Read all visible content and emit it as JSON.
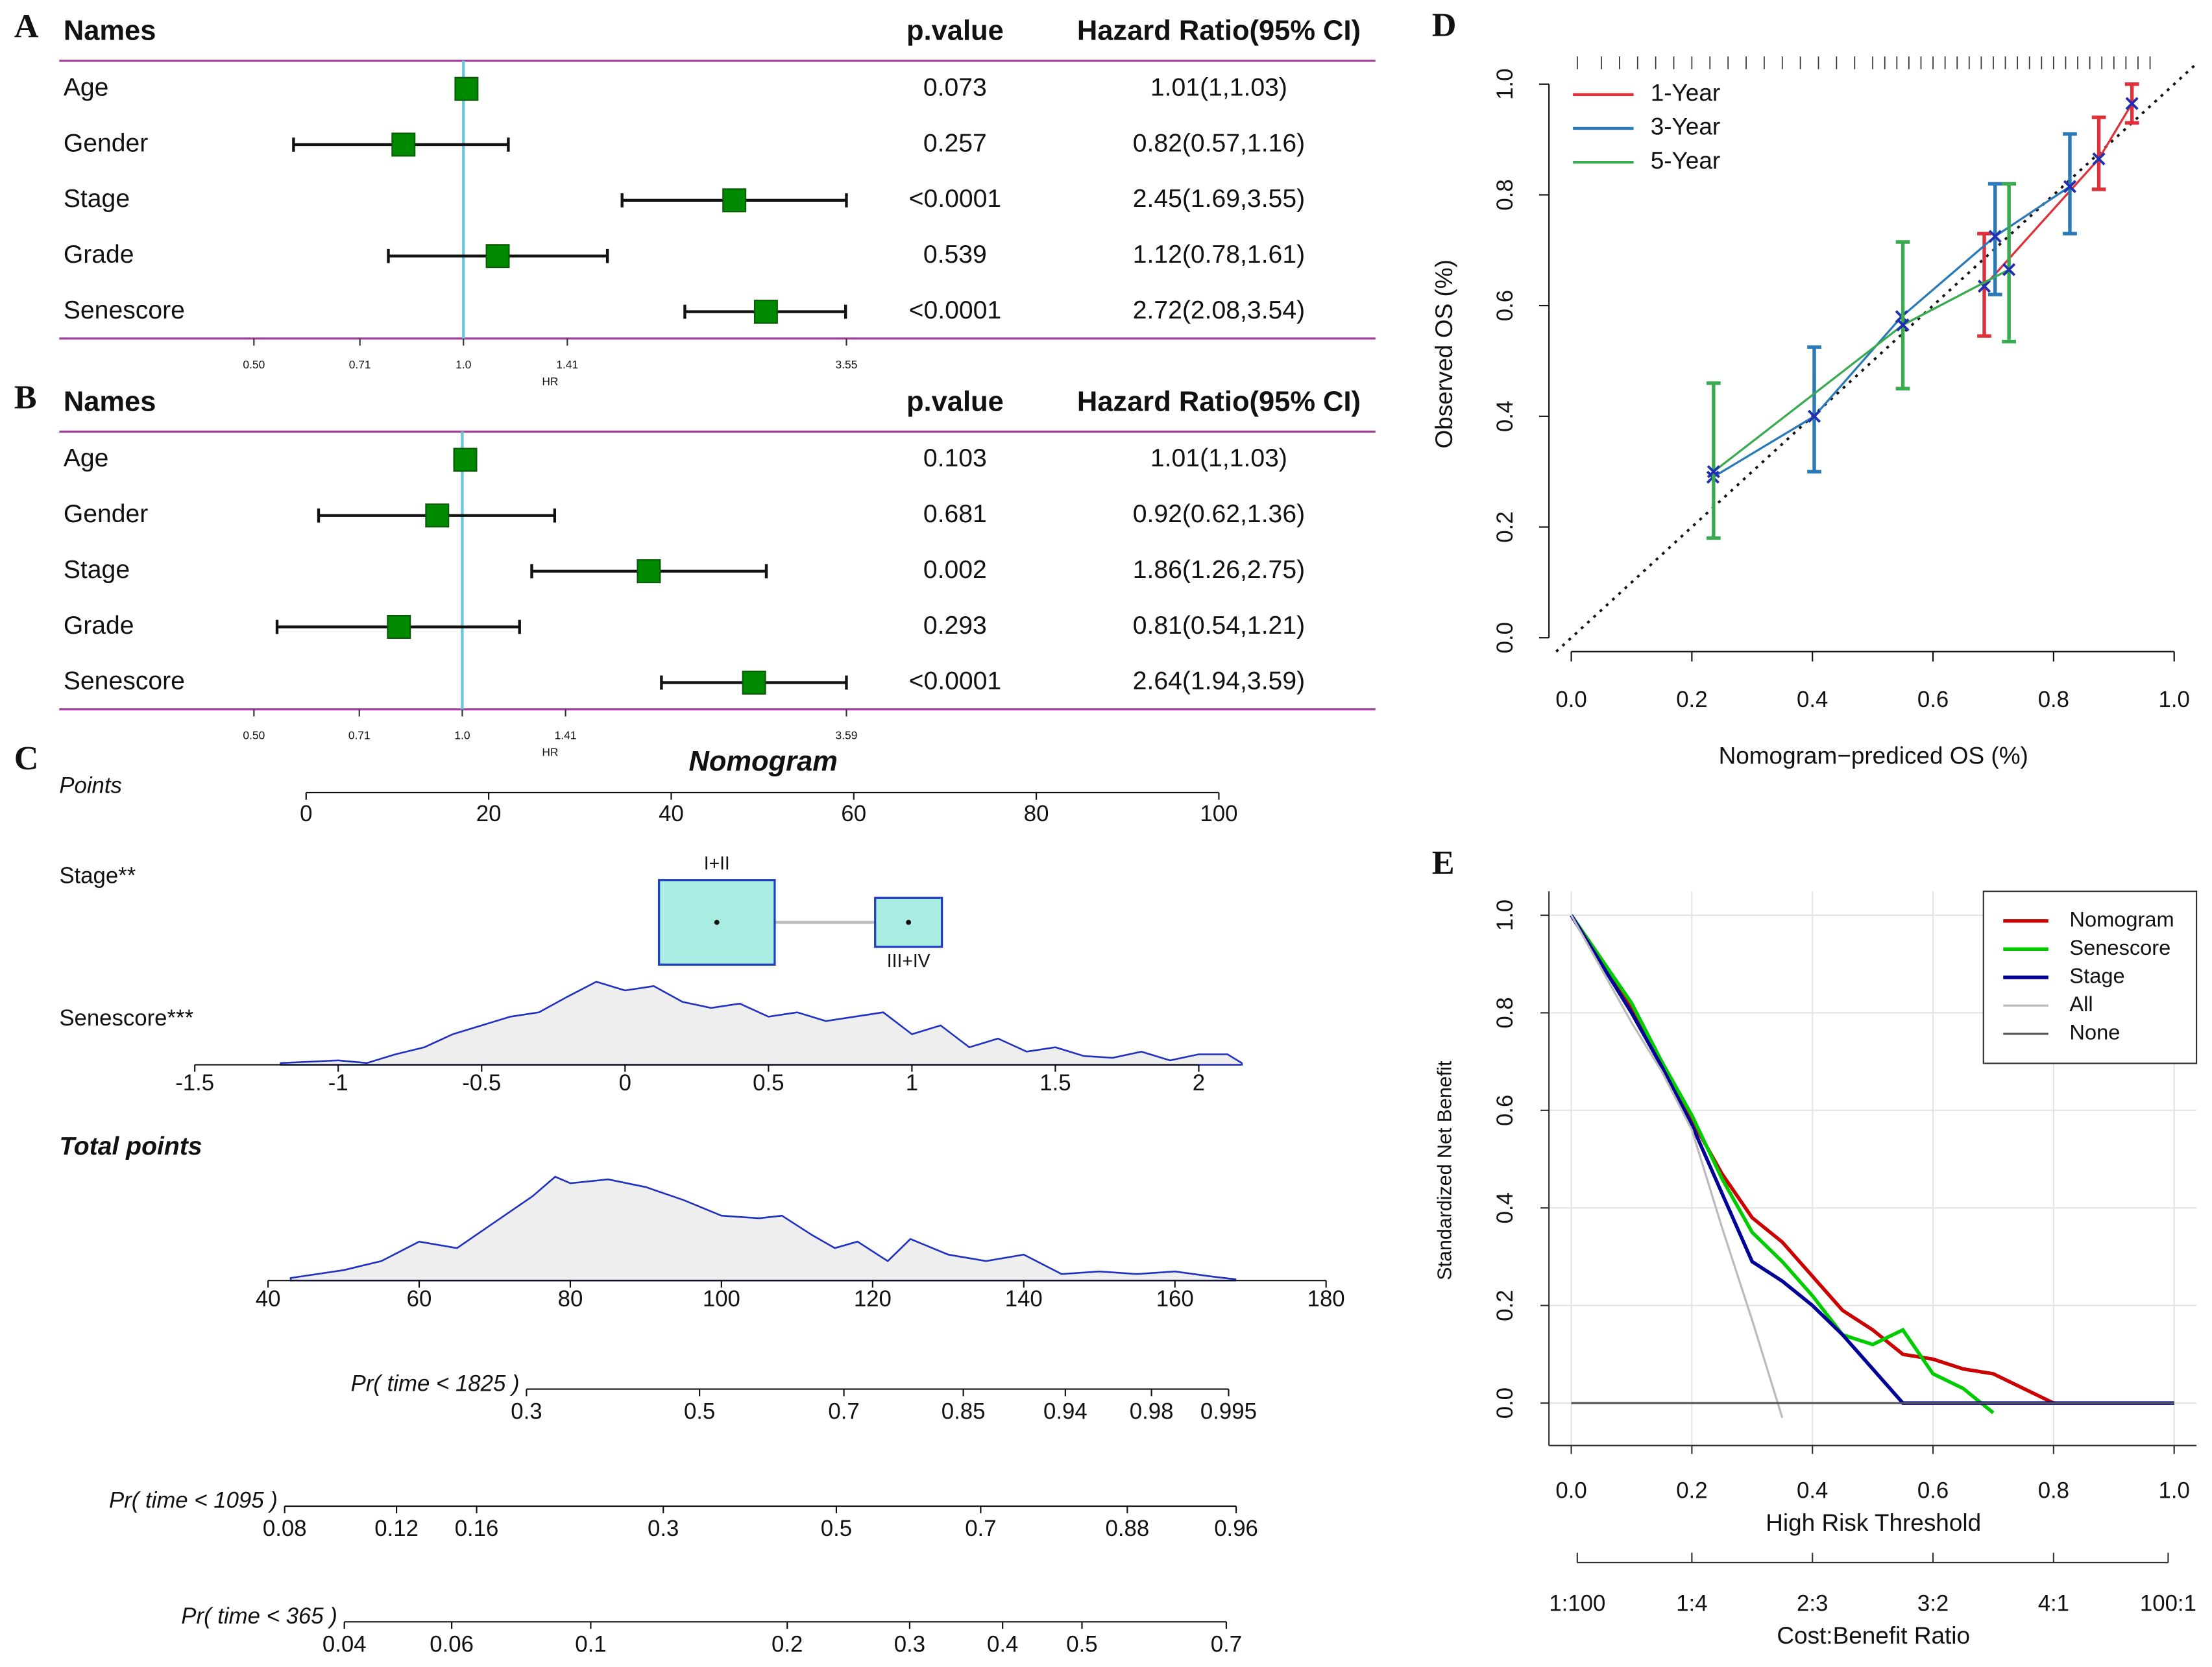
{
  "chart_data": [
    {
      "type": "forest",
      "panel": "A",
      "headers": [
        "Names",
        "p.value",
        "Hazard Ratio(95% CI)"
      ],
      "categories": [
        "Age",
        "Gender",
        "Stage",
        "Grade",
        "Senescore"
      ],
      "values": [
        1.01,
        0.82,
        2.45,
        1.12,
        2.72
      ],
      "lower": [
        1,
        0.57,
        1.69,
        0.78,
        2.08
      ],
      "upper": [
        1.03,
        1.16,
        3.55,
        1.61,
        3.54
      ],
      "p_values": [
        "0.073",
        "0.257",
        "<0.0001",
        "0.539",
        "<0.0001"
      ],
      "value_labels": [
        "1.01(1,1.03)",
        "0.82(0.57,1.16)",
        "2.45(1.69,3.55)",
        "1.12(0.78,1.61)",
        "2.72(2.08,3.54)"
      ],
      "xlabel": "HR",
      "log_x": true,
      "xlim": [
        0.5,
        3.55
      ],
      "xticks": [
        {
          "value": 0.5,
          "label": "0.50"
        },
        0.71,
        {
          "value": 1,
          "label": "1.0"
        },
        1.41,
        3.55
      ],
      "reference": 1,
      "color": "#008a00"
    },
    {
      "type": "forest",
      "panel": "B",
      "headers": [
        "Names",
        "p.value",
        "Hazard Ratio(95% CI)"
      ],
      "categories": [
        "Age",
        "Gender",
        "Stage",
        "Grade",
        "Senescore"
      ],
      "values": [
        1.01,
        0.92,
        1.86,
        0.81,
        2.64
      ],
      "lower": [
        1,
        0.62,
        1.26,
        0.54,
        1.94
      ],
      "upper": [
        1.03,
        1.36,
        2.75,
        1.21,
        3.59
      ],
      "p_values": [
        "0.103",
        "0.681",
        "0.002",
        "0.293",
        "<0.0001"
      ],
      "value_labels": [
        "1.01(1,1.03)",
        "0.92(0.62,1.36)",
        "1.86(1.26,2.75)",
        "0.81(0.54,1.21)",
        "2.64(1.94,3.59)"
      ],
      "xlabel": "HR",
      "log_x": true,
      "xlim": [
        0.5,
        3.59
      ],
      "xticks": [
        {
          "value": 0.5,
          "label": "0.50"
        },
        0.71,
        {
          "value": 1,
          "label": "1.0"
        },
        1.41,
        3.59
      ],
      "reference": 1,
      "color": "#008a00"
    },
    {
      "type": "nomogram",
      "panel": "C",
      "title": "Nomogram",
      "points": {
        "label": "Points",
        "xlim": [
          0,
          100
        ],
        "xticks": [
          0,
          20,
          40,
          60,
          80,
          100
        ]
      },
      "stage": {
        "label": "Stage**",
        "categories": [
          "I+II",
          "III+IV"
        ],
        "values": [
          45,
          66
        ],
        "weights": [
          75,
          25
        ]
      },
      "senescore": {
        "label": "Senescore***",
        "xlim": [
          -1.5,
          2
        ],
        "points_at_xlim": [
          -12.2,
          97.8
        ],
        "xticks": [
          -1.5,
          -1,
          -0.5,
          0,
          0.5,
          1,
          1.5,
          2
        ],
        "density": {
          "x": [
            -1.2,
            -1,
            -0.9,
            -0.8,
            -0.7,
            -0.6,
            -0.5,
            -0.4,
            -0.3,
            -0.2,
            -0.1,
            0,
            0.1,
            0.2,
            0.3,
            0.4,
            0.5,
            0.6,
            0.7,
            0.8,
            0.9,
            1,
            1.1,
            1.2,
            1.3,
            1.4,
            1.5,
            1.6,
            1.7,
            1.8,
            1.9,
            2,
            2.1,
            2.15
          ],
          "values": [
            0.02,
            0.05,
            0.02,
            0.12,
            0.2,
            0.35,
            0.45,
            0.55,
            0.6,
            0.78,
            0.95,
            0.85,
            0.9,
            0.72,
            0.65,
            0.7,
            0.55,
            0.6,
            0.5,
            0.55,
            0.6,
            0.35,
            0.45,
            0.2,
            0.3,
            0.15,
            0.2,
            0.1,
            0.08,
            0.15,
            0.05,
            0.12,
            0.12,
            0.02
          ]
        }
      },
      "total_points": {
        "label": "Total points",
        "xlim": [
          40,
          180
        ],
        "xticks": [
          40,
          60,
          80,
          100,
          120,
          140,
          160,
          180
        ],
        "density": {
          "x": [
            43,
            50,
            55,
            60,
            65,
            70,
            75,
            78,
            80,
            85,
            90,
            95,
            100,
            105,
            108,
            112,
            115,
            118,
            122,
            125,
            130,
            135,
            140,
            145,
            150,
            155,
            160,
            165,
            168
          ],
          "values": [
            0.02,
            0.08,
            0.15,
            0.3,
            0.25,
            0.45,
            0.65,
            0.8,
            0.75,
            0.78,
            0.72,
            0.62,
            0.5,
            0.48,
            0.5,
            0.35,
            0.25,
            0.3,
            0.15,
            0.32,
            0.2,
            0.15,
            0.2,
            0.05,
            0.07,
            0.05,
            0.07,
            0.03,
            0.01
          ]
        }
      },
      "probabilities": [
        {
          "label": "Pr( time < 1825 )",
          "xticks": [
            0.3,
            0.5,
            0.7,
            0.85,
            0.94,
            0.98,
            0.995
          ],
          "total_points_at": [
            74.2,
            97.1,
            116.2,
            132.0,
            145.5,
            156.9,
            167.1
          ]
        },
        {
          "label": "Pr( time < 1095 )",
          "xticks": [
            0.08,
            0.12,
            0.16,
            0.3,
            0.5,
            0.7,
            0.88,
            0.96
          ],
          "total_points_at": [
            42.2,
            57.0,
            67.6,
            92.3,
            115.2,
            134.3,
            153.7,
            168.1
          ]
        },
        {
          "label": "Pr( time < 365 )",
          "xticks": [
            0.04,
            0.06,
            0.1,
            0.2,
            0.3,
            0.4,
            0.5,
            0.7
          ],
          "total_points_at": [
            50.1,
            64.3,
            82.7,
            108.7,
            124.9,
            137.2,
            147.7,
            166.8
          ]
        }
      ]
    },
    {
      "type": "calibration",
      "panel": "D",
      "xlabel": "Nomogram−prediced OS (%)",
      "ylabel": "Observed OS (%)",
      "xlim": [
        -0.037,
        1.037
      ],
      "ylim": [
        -0.025,
        1.05
      ],
      "xticks": [
        {
          "value": 0,
          "label": "0.0"
        },
        0.2,
        0.4,
        0.6,
        0.8,
        {
          "value": 1,
          "label": "1.0"
        }
      ],
      "yticks": [
        {
          "value": 0,
          "label": "0.0"
        },
        0.2,
        0.4,
        0.6,
        0.8,
        {
          "value": 1,
          "label": "1.0"
        }
      ],
      "diagonal": true,
      "legend": "top-left",
      "rug": [
        0.01,
        0.05,
        0.08,
        0.11,
        0.14,
        0.17,
        0.2,
        0.23,
        0.26,
        0.29,
        0.32,
        0.35,
        0.38,
        0.41,
        0.44,
        0.47,
        0.5,
        0.52,
        0.54,
        0.56,
        0.58,
        0.6,
        0.62,
        0.64,
        0.66,
        0.68,
        0.7,
        0.72,
        0.74,
        0.76,
        0.78,
        0.8,
        0.82,
        0.84,
        0.86,
        0.88,
        0.9,
        0.92,
        0.94,
        0.96
      ],
      "series": [
        {
          "name": "1-Year",
          "color": "#e0303a",
          "x": [
            0.685,
            0.875,
            0.93
          ],
          "values": [
            0.635,
            0.865,
            0.965
          ],
          "lower": [
            0.545,
            0.81,
            0.93
          ],
          "upper": [
            0.73,
            0.94,
            1.0
          ]
        },
        {
          "name": "3-Year",
          "color": "#2a7ab8",
          "x": [
            0.235,
            0.403,
            0.548,
            0.703,
            0.827
          ],
          "values": [
            0.29,
            0.4,
            0.58,
            0.725,
            0.815
          ],
          "lower": [
            null,
            0.3,
            null,
            0.62,
            0.73
          ],
          "upper": [
            null,
            0.525,
            null,
            0.82,
            0.91
          ]
        },
        {
          "name": "5-Year",
          "color": "#3aaa50",
          "x": [
            0.236,
            0.55,
            0.726
          ],
          "values": [
            0.3,
            0.565,
            0.665
          ],
          "lower": [
            0.18,
            0.45,
            0.535
          ],
          "upper": [
            0.46,
            0.715,
            0.82
          ]
        }
      ]
    },
    {
      "type": "dca",
      "panel": "E",
      "xlabel": "High Risk Threshold",
      "ylabel": "Standardized Net Benefit",
      "xlim": [
        -0.037,
        1.037
      ],
      "ylim": [
        -0.087,
        1.049
      ],
      "grid": true,
      "legend": "top-right",
      "xticks": [
        {
          "value": 0,
          "label": "0.0"
        },
        0.2,
        0.4,
        0.6,
        0.8,
        {
          "value": 1,
          "label": "1.0"
        }
      ],
      "yticks": [
        {
          "value": 0,
          "label": "0.0"
        },
        0.2,
        0.4,
        0.6,
        0.8,
        {
          "value": 1,
          "label": "1.0"
        }
      ],
      "x": [
        0,
        0.05,
        0.1,
        0.15,
        0.2,
        0.25,
        0.3,
        0.35,
        0.4,
        0.45,
        0.5,
        0.55,
        0.6,
        0.65,
        0.7,
        0.75,
        0.8,
        0.85,
        0.9,
        0.95,
        1
      ],
      "series": [
        {
          "name": "Nomogram",
          "color": "#cc0000",
          "values": [
            1.0,
            0.91,
            0.81,
            0.7,
            0.58,
            0.47,
            0.38,
            0.33,
            0.26,
            0.19,
            0.15,
            0.1,
            0.09,
            0.07,
            0.06,
            0.03,
            0.0,
            null,
            null,
            null,
            null
          ]
        },
        {
          "name": "Senescore",
          "color": "#00cc00",
          "values": [
            1.0,
            0.91,
            0.82,
            0.7,
            0.59,
            0.46,
            0.35,
            0.29,
            0.22,
            0.14,
            0.12,
            0.15,
            0.06,
            0.03,
            -0.02,
            null,
            null,
            null,
            null,
            null,
            null
          ]
        },
        {
          "name": "Stage",
          "color": "#000099",
          "values": [
            1.0,
            0.9,
            0.8,
            0.69,
            0.57,
            0.43,
            0.29,
            0.25,
            0.2,
            0.14,
            0.07,
            0.0,
            0.0,
            0.0,
            0.0,
            0.0,
            0.0,
            0.0,
            0.0,
            0.0,
            0.0
          ]
        },
        {
          "name": "All",
          "color": "#bbbbbb",
          "values": [
            1.0,
            0.89,
            0.78,
            0.68,
            0.56,
            0.36,
            0.17,
            -0.03,
            null,
            null,
            null,
            null,
            null,
            null,
            null,
            null,
            null,
            null,
            null,
            null,
            null
          ]
        },
        {
          "name": "None",
          "color": "#555555",
          "values": [
            0,
            0,
            0,
            0,
            0,
            0,
            0,
            0,
            0,
            0,
            0,
            0,
            0,
            0,
            0,
            0,
            0,
            0,
            0,
            0,
            0
          ]
        }
      ],
      "secondary_axis": {
        "label": "Cost:Benefit Ratio",
        "ticks": [
          {
            "value": 0.01,
            "label": "1:100"
          },
          {
            "value": 0.2,
            "label": "1:4"
          },
          {
            "value": 0.4,
            "label": "2:3"
          },
          {
            "value": 0.6,
            "label": "3:2"
          },
          {
            "value": 0.8,
            "label": "4:1"
          },
          {
            "value": 0.99,
            "label": "100:1"
          }
        ]
      }
    }
  ]
}
